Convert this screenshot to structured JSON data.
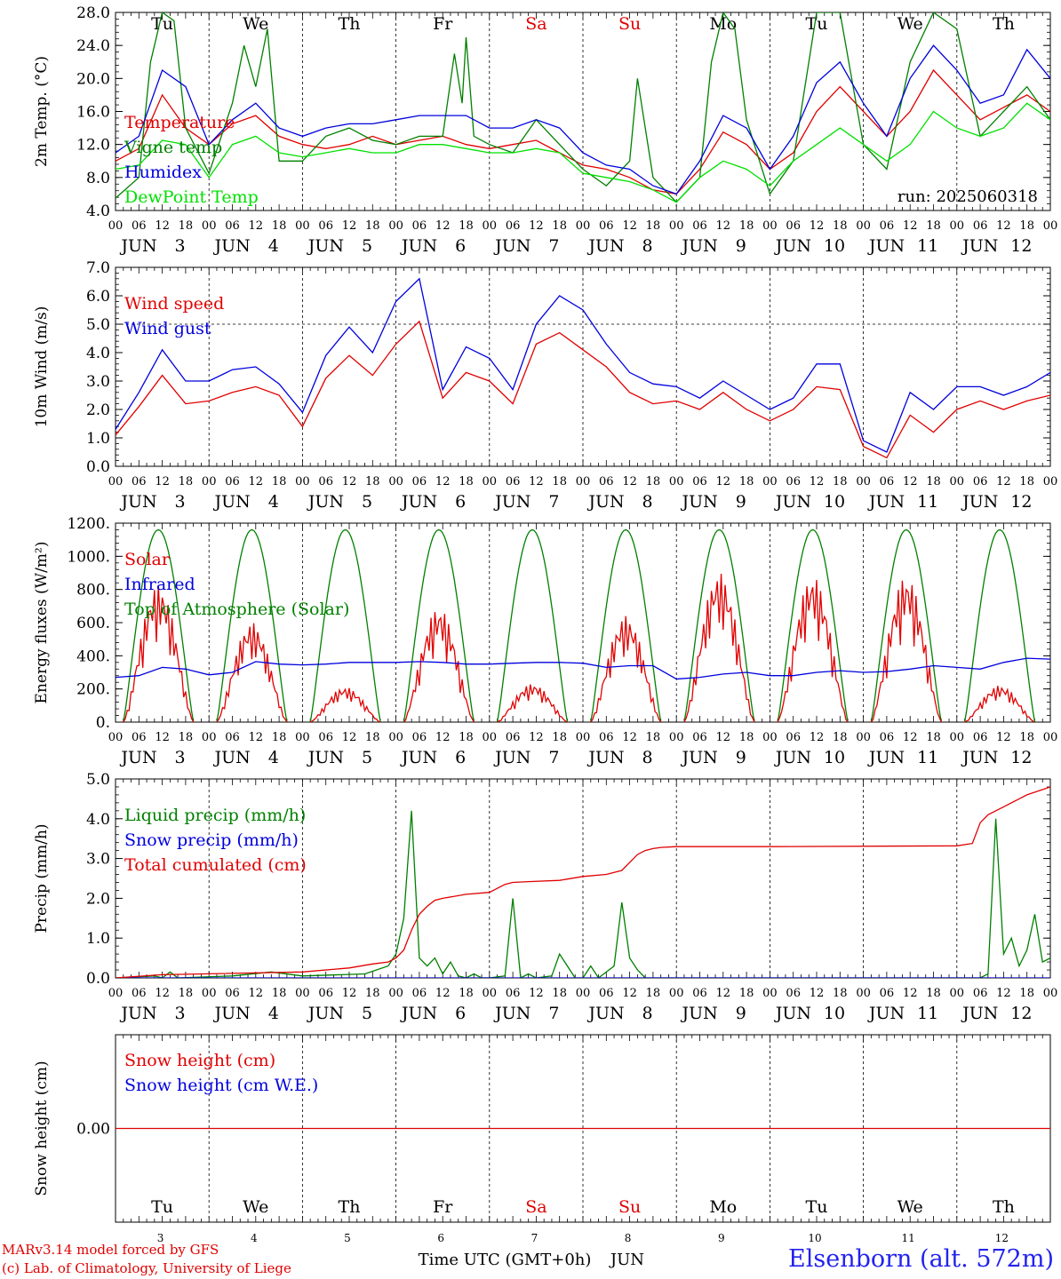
{
  "days": [
    {
      "dow": "Tu",
      "month": "JUN",
      "date": "3",
      "color": "#000000"
    },
    {
      "dow": "We",
      "month": "JUN",
      "date": "4",
      "color": "#000000"
    },
    {
      "dow": "Th",
      "month": "JUN",
      "date": "5",
      "color": "#000000"
    },
    {
      "dow": "Fr",
      "month": "JUN",
      "date": "6",
      "color": "#000000"
    },
    {
      "dow": "Sa",
      "month": "JUN",
      "date": "7",
      "color": "#e00000"
    },
    {
      "dow": "Su",
      "month": "JUN",
      "date": "8",
      "color": "#e00000"
    },
    {
      "dow": "Mo",
      "month": "JUN",
      "date": "9",
      "color": "#000000"
    },
    {
      "dow": "Tu",
      "month": "JUN",
      "date": "10",
      "color": "#000000"
    },
    {
      "dow": "We",
      "month": "JUN",
      "date": "11",
      "color": "#000000"
    },
    {
      "dow": "Th",
      "month": "JUN",
      "date": "12",
      "color": "#000000"
    }
  ],
  "hour_labels": [
    "00",
    "06",
    "12",
    "18"
  ],
  "footer": {
    "credit_line1": "MARv3.14 model forced by GFS",
    "credit_line2": "(c) Lab. of Climatology, University of Liege",
    "time_axis_label": "Time UTC (GMT+0h)",
    "month": "JUN",
    "station": "Elsenborn (alt. 572m)"
  },
  "colors": {
    "red": "#e00000",
    "green": "#008000",
    "blue": "#0000dd",
    "lightgreen": "#00e000"
  },
  "chart_data": [
    {
      "type": "line",
      "ylabel": "2m Temp. (°C)",
      "ylim": [
        4,
        28
      ],
      "yticks": [
        "4.0",
        "8.0",
        "12.0",
        "16.0",
        "20.0",
        "24.0",
        "28.0"
      ],
      "annotation": "run: 2025060318",
      "x_unit": "hours since 2025-06-03 00 UTC",
      "series": [
        {
          "name": "Temperature",
          "color": "#e00000",
          "x": [
            0,
            6,
            12,
            18,
            24,
            30,
            36,
            42,
            48,
            54,
            60,
            66,
            72,
            78,
            84,
            90,
            96,
            102,
            108,
            114,
            120,
            126,
            132,
            138,
            144,
            150,
            156,
            162,
            168,
            174,
            180,
            186,
            192,
            198,
            204,
            210,
            216,
            222,
            228,
            234,
            240
          ],
          "y": [
            10,
            11.5,
            18,
            14,
            12,
            14.5,
            15.5,
            13,
            12,
            11.5,
            12,
            13,
            12,
            12.5,
            13,
            12,
            11.5,
            12,
            12.5,
            11,
            9.5,
            9,
            8,
            6.5,
            6,
            9,
            13.5,
            12,
            9,
            11,
            16,
            19,
            16,
            13,
            16,
            21,
            18,
            15,
            16.5,
            18,
            16
          ]
        },
        {
          "name": "Vigne temp",
          "color": "#008000",
          "x": [
            0,
            6,
            9,
            12,
            15,
            18,
            24,
            30,
            33,
            36,
            39,
            42,
            48,
            54,
            60,
            66,
            72,
            78,
            84,
            87,
            89,
            90,
            92,
            96,
            102,
            108,
            114,
            120,
            126,
            132,
            134,
            138,
            144,
            150,
            153,
            156,
            159,
            162,
            168,
            174,
            180,
            186,
            192,
            198,
            204,
            210,
            216,
            222,
            228,
            234,
            240
          ],
          "y": [
            5.5,
            8,
            22,
            28,
            27,
            14,
            8.5,
            17,
            24,
            19,
            26,
            10,
            10,
            13,
            14,
            12.5,
            12,
            13,
            13,
            23,
            17,
            25,
            13,
            12,
            11,
            15,
            12,
            9,
            7,
            10,
            20,
            8,
            5,
            8,
            22,
            28,
            26,
            15,
            6,
            10,
            28,
            28,
            12,
            9,
            22,
            28,
            26,
            13,
            16,
            19,
            15
          ]
        },
        {
          "name": "Humidex",
          "color": "#0000dd",
          "x": [
            0,
            6,
            12,
            18,
            24,
            30,
            36,
            42,
            48,
            54,
            60,
            66,
            72,
            78,
            84,
            90,
            96,
            102,
            108,
            114,
            120,
            126,
            132,
            138,
            144,
            150,
            156,
            162,
            168,
            174,
            180,
            186,
            192,
            198,
            204,
            210,
            216,
            222,
            228,
            234,
            240
          ],
          "y": [
            11,
            13,
            21,
            19,
            12,
            15,
            17,
            14,
            13,
            14,
            14.5,
            14.5,
            15,
            15.5,
            15.5,
            15.5,
            14,
            14,
            15,
            14,
            11,
            9.5,
            9,
            7,
            6,
            10,
            15.5,
            14,
            9,
            13,
            19.5,
            22,
            17,
            13,
            20,
            24,
            21,
            17,
            18,
            23.5,
            20
          ]
        },
        {
          "name": "DewPoint Temp",
          "color": "#00e000",
          "x": [
            0,
            6,
            12,
            18,
            24,
            30,
            36,
            42,
            48,
            54,
            60,
            66,
            72,
            78,
            84,
            90,
            96,
            102,
            108,
            114,
            120,
            126,
            132,
            138,
            144,
            150,
            156,
            162,
            168,
            174,
            180,
            186,
            192,
            198,
            204,
            210,
            216,
            222,
            228,
            234,
            240
          ],
          "y": [
            9,
            9.5,
            12.5,
            12,
            8,
            12,
            13,
            11,
            10.5,
            11,
            11.5,
            11,
            11,
            12,
            12,
            11.5,
            11,
            11,
            11.5,
            11,
            8.5,
            8,
            7.5,
            6.5,
            5,
            8,
            10,
            9,
            7,
            10,
            12,
            14,
            12,
            10,
            12,
            16,
            14,
            13,
            14,
            17,
            15
          ]
        }
      ]
    },
    {
      "type": "line",
      "ylabel": "10m Wind (m/s)",
      "ylim": [
        0,
        7
      ],
      "yticks": [
        "0.0",
        "1.0",
        "2.0",
        "3.0",
        "4.0",
        "5.0",
        "6.0",
        "7.0"
      ],
      "x_unit": "hours since 2025-06-03 00 UTC",
      "series": [
        {
          "name": "Wind speed",
          "color": "#e00000",
          "x": [
            0,
            6,
            12,
            18,
            24,
            30,
            36,
            42,
            48,
            54,
            60,
            66,
            72,
            78,
            84,
            90,
            96,
            102,
            108,
            114,
            120,
            126,
            132,
            138,
            144,
            150,
            156,
            162,
            168,
            174,
            180,
            186,
            192,
            198,
            204,
            210,
            216,
            222,
            228,
            234,
            240
          ],
          "y": [
            1.1,
            2.1,
            3.2,
            2.2,
            2.3,
            2.6,
            2.8,
            2.5,
            1.4,
            3.1,
            3.9,
            3.2,
            4.3,
            5.1,
            2.4,
            3.3,
            3.0,
            2.2,
            4.3,
            4.7,
            4.1,
            3.5,
            2.6,
            2.2,
            2.3,
            2.0,
            2.6,
            2.0,
            1.6,
            2.0,
            2.8,
            2.7,
            0.7,
            0.3,
            1.8,
            1.2,
            2.0,
            2.3,
            2.0,
            2.3,
            2.5
          ]
        },
        {
          "name": "Wind gust",
          "color": "#0000dd",
          "x": [
            0,
            6,
            12,
            18,
            24,
            30,
            36,
            42,
            48,
            54,
            60,
            66,
            72,
            78,
            84,
            90,
            96,
            102,
            108,
            114,
            120,
            126,
            132,
            138,
            144,
            150,
            156,
            162,
            168,
            174,
            180,
            186,
            192,
            198,
            204,
            210,
            216,
            222,
            228,
            234,
            240
          ],
          "y": [
            1.3,
            2.6,
            4.1,
            3.0,
            3.0,
            3.4,
            3.5,
            2.9,
            1.9,
            3.9,
            4.9,
            4.0,
            5.8,
            6.6,
            2.7,
            4.2,
            3.8,
            2.7,
            5.0,
            6.0,
            5.5,
            4.3,
            3.3,
            2.9,
            2.8,
            2.4,
            3.0,
            2.5,
            2.0,
            2.4,
            3.6,
            3.6,
            0.9,
            0.5,
            2.6,
            2.0,
            2.8,
            2.8,
            2.5,
            2.8,
            3.3
          ]
        }
      ]
    },
    {
      "type": "line",
      "ylabel": "Energy fluxes (W/m²)",
      "ylim": [
        0,
        1200
      ],
      "yticks": [
        "0.",
        "200.",
        "400.",
        "600.",
        "800.",
        "1000.",
        "1200."
      ],
      "x_unit": "hours since 2025-06-03 00 UTC",
      "toa_peak": 1160,
      "series": [
        {
          "name": "Solar",
          "color": "#e00000",
          "solar_peaks": [
            830,
            600,
            210,
            690,
            230,
            640,
            900,
            880,
            880,
            220
          ]
        },
        {
          "name": "Infrared",
          "color": "#0000dd",
          "x": [
            0,
            6,
            12,
            18,
            24,
            30,
            36,
            42,
            48,
            54,
            60,
            66,
            72,
            78,
            84,
            90,
            96,
            102,
            108,
            114,
            120,
            126,
            132,
            138,
            144,
            150,
            156,
            162,
            168,
            174,
            180,
            186,
            192,
            198,
            204,
            210,
            216,
            222,
            228,
            234,
            240
          ],
          "y": [
            270,
            280,
            330,
            320,
            285,
            300,
            365,
            350,
            345,
            350,
            360,
            360,
            360,
            365,
            360,
            350,
            350,
            355,
            360,
            360,
            355,
            330,
            340,
            340,
            260,
            270,
            290,
            300,
            280,
            280,
            300,
            310,
            300,
            305,
            320,
            340,
            330,
            320,
            360,
            385,
            380
          ]
        },
        {
          "name": "Top of Atmosphere (Solar)",
          "color": "#008000"
        }
      ]
    },
    {
      "type": "line",
      "ylabel": "Precip (mm/h)",
      "ylim": [
        0,
        5
      ],
      "yticks": [
        "0.0",
        "1.0",
        "2.0",
        "3.0",
        "4.0",
        "5.0"
      ],
      "x_unit": "hours since 2025-06-03 00 UTC",
      "series": [
        {
          "name": "Liquid precip (mm/h)",
          "color": "#008000",
          "x": [
            0,
            10,
            12,
            14,
            16,
            30,
            40,
            48,
            64,
            70,
            72,
            74,
            76,
            78,
            80,
            82,
            84,
            86,
            88,
            90,
            92,
            94,
            96,
            100,
            102,
            104,
            106,
            108,
            112,
            114,
            118,
            120,
            122,
            124,
            128,
            130,
            132,
            134,
            136,
            140,
            216,
            222,
            224,
            226,
            228,
            230,
            232,
            234,
            236,
            238,
            240
          ],
          "y": [
            0,
            0.05,
            0,
            0.15,
            0,
            0.05,
            0.15,
            0.05,
            0.1,
            0.3,
            0.6,
            1.5,
            4.2,
            0.5,
            0.3,
            0.5,
            0.1,
            0.4,
            0.05,
            0,
            0.1,
            0,
            0,
            0.05,
            2.0,
            0,
            0.1,
            0,
            0.05,
            0.6,
            0,
            0,
            0.3,
            0,
            0.3,
            1.9,
            0.5,
            0.2,
            0,
            0,
            0,
            0,
            0.1,
            4.0,
            0.6,
            1.0,
            0.3,
            0.7,
            1.6,
            0.4,
            0.5
          ]
        },
        {
          "name": "Snow precip (mm/h)",
          "color": "#0000dd",
          "x": [
            0,
            240
          ],
          "y": [
            0,
            0
          ]
        },
        {
          "name": "Total cumulated (cm)",
          "color": "#e00000",
          "x": [
            0,
            12,
            48,
            60,
            66,
            70,
            72,
            74,
            76,
            78,
            80,
            82,
            84,
            90,
            96,
            98,
            100,
            102,
            106,
            114,
            120,
            126,
            130,
            132,
            134,
            136,
            138,
            140,
            144,
            168,
            216,
            220,
            222,
            224,
            228,
            234,
            240
          ],
          "y": [
            0,
            0.08,
            0.15,
            0.25,
            0.35,
            0.4,
            0.5,
            0.7,
            1.2,
            1.6,
            1.8,
            1.95,
            2.0,
            2.1,
            2.15,
            2.25,
            2.35,
            2.4,
            2.42,
            2.45,
            2.55,
            2.6,
            2.7,
            2.9,
            3.1,
            3.2,
            3.25,
            3.28,
            3.3,
            3.3,
            3.32,
            3.38,
            3.9,
            4.1,
            4.3,
            4.6,
            4.8
          ]
        }
      ]
    },
    {
      "type": "line",
      "ylabel": "Snow height (cm)",
      "ylim": [
        -1,
        1
      ],
      "yticks": [
        "0.00"
      ],
      "x_unit": "hours since 2025-06-03 00 UTC",
      "series": [
        {
          "name": "Snow height (cm)",
          "color": "#e00000",
          "x": [
            0,
            240
          ],
          "y": [
            0,
            0
          ]
        },
        {
          "name": "Snow height (cm W.E.)",
          "color": "#0000dd"
        }
      ]
    }
  ]
}
